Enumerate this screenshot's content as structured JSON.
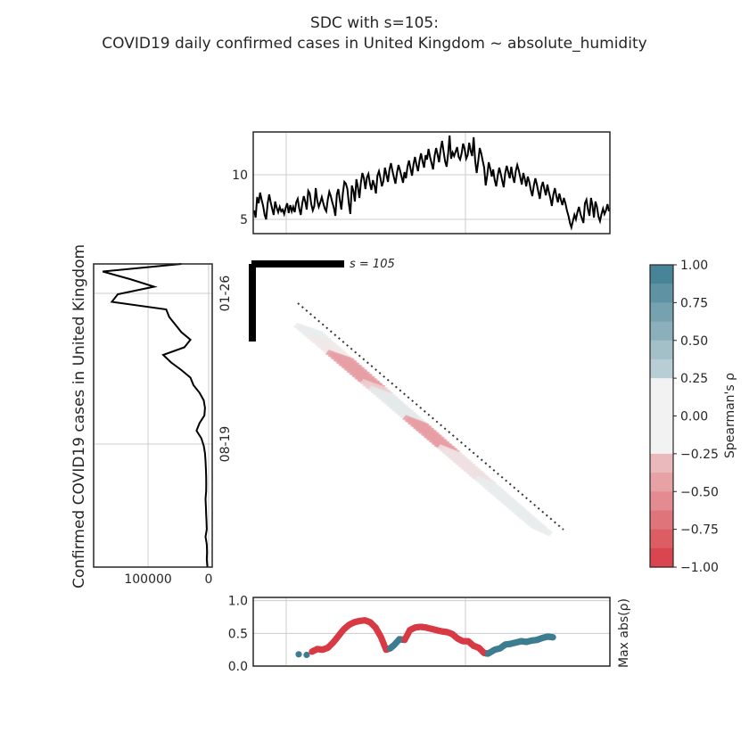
{
  "title": {
    "line1": "SDC with s=105:",
    "line2": "COVID19 daily confirmed cases in United Kingdom ~ absolute_humidity"
  },
  "colors": {
    "black": "#000000",
    "grid": "#cccccc",
    "negative": "#d83a45",
    "positive": "#3d7d91",
    "neutral": "#f2f2f2"
  },
  "chart_data": [
    {
      "id": "top",
      "type": "line",
      "ylabel": "",
      "yticks": [
        5,
        10
      ],
      "ylim": [
        3.4,
        14.8
      ],
      "grid": true,
      "series": [
        {
          "values": [
            6.0,
            5.2,
            7.5,
            6.8,
            8.0,
            7.2,
            6.5,
            5.5,
            5.0,
            6.8,
            7.8,
            6.9,
            6.2,
            5.5,
            7.0,
            6.3,
            5.8,
            6.4,
            5.9,
            6.1,
            5.6,
            6.3,
            6.8,
            5.7,
            6.6,
            5.9,
            6.4,
            5.8,
            6.9,
            7.3,
            6.2,
            5.5,
            6.8,
            7.6,
            7.0,
            6.1,
            8.2,
            7.9,
            6.7,
            6.0,
            6.5,
            8.5,
            7.1,
            6.4,
            6.9,
            7.5,
            6.8,
            6.2,
            5.9,
            7.2,
            8.1,
            7.6,
            6.9,
            6.3,
            5.4,
            7.8,
            8.4,
            7.2,
            6.1,
            7.9,
            9.2,
            9.0,
            8.4,
            6.8,
            5.6,
            8.8,
            8.2,
            7.0,
            9.5,
            8.6,
            7.4,
            9.1,
            10.2,
            9.6,
            8.4,
            9.7,
            10.1,
            9.0,
            8.3,
            9.4,
            8.8,
            7.9,
            9.9,
            10.4,
            9.6,
            8.7,
            9.3,
            10.8,
            10.0,
            9.2,
            10.6,
            11.3,
            10.4,
            9.7,
            9.0,
            10.2,
            11.1,
            10.5,
            9.8,
            9.1,
            10.3,
            9.6,
            10.9,
            11.6,
            10.7,
            9.9,
            11.2,
            12.0,
            11.1,
            10.4,
            11.6,
            12.4,
            11.5,
            10.8,
            12.2,
            11.7,
            12.9,
            12.0,
            11.3,
            10.6,
            12.1,
            13.0,
            12.3,
            11.4,
            12.8,
            13.8,
            12.6,
            11.5,
            10.9,
            12.4,
            14.4,
            11.8,
            12.5,
            12.1,
            12.6,
            13.1,
            12.0,
            11.7,
            12.4,
            13.5,
            12.9,
            11.8,
            12.2,
            13.6,
            12.7,
            12.1,
            14.2,
            11.6,
            10.2,
            11.5,
            13.0,
            12.4,
            11.6,
            10.8,
            8.8,
            9.9,
            11.4,
            10.7,
            9.8,
            10.6,
            9.4,
            8.7,
            9.9,
            10.8,
            10.1,
            9.3,
            8.6,
            10.2,
            11.0,
            10.3,
            9.6,
            10.9,
            9.8,
            9.1,
            10.4,
            11.1,
            10.5,
            9.7,
            8.9,
            10.2,
            9.5,
            8.7,
            9.8,
            9.2,
            8.3,
            7.6,
            8.8,
            9.6,
            8.9,
            8.1,
            7.3,
            8.6,
            9.2,
            8.4,
            7.7,
            8.9,
            8.1,
            7.4,
            6.5,
            7.8,
            8.5,
            7.6,
            6.9,
            7.9,
            7.2,
            6.6,
            7.4,
            6.8,
            6.0,
            5.4,
            4.6,
            4.1,
            4.8,
            5.5,
            5.0,
            5.8,
            6.4,
            5.6,
            5.1,
            4.6,
            6.8,
            7.2,
            6.1,
            5.4,
            7.4,
            6.6,
            5.2,
            7.0,
            6.4,
            5.3,
            4.8,
            5.6,
            6.2,
            5.6,
            6.0,
            6.7,
            5.9
          ]
        }
      ]
    },
    {
      "id": "left",
      "type": "line",
      "ylabel": "Confirmed COVID19 cases in United Kingdom",
      "xticks": [
        "100000",
        "0"
      ],
      "xlim": [
        190000,
        -6000
      ],
      "ytick_labels": [
        "01-26",
        "08-19"
      ],
      "grid": true,
      "series": [
        {
          "values": [
            45000,
            175000,
            130000,
            90000,
            150000,
            160000,
            70000,
            65000,
            55000,
            45000,
            30000,
            40000,
            75000,
            62000,
            45000,
            30000,
            25000,
            15000,
            8000,
            6000,
            7000,
            15000,
            20000,
            12000,
            8000,
            6000,
            5000,
            4500,
            4000,
            3800,
            4000,
            5000,
            4500,
            4000,
            3500,
            3000,
            5000,
            3000,
            2500,
            3000,
            2000
          ]
        }
      ]
    },
    {
      "id": "bottom",
      "type": "scatter",
      "ylabel": "Max abs(ρ)",
      "yticks": [
        "0.0",
        "0.5",
        "1.0"
      ],
      "ylim": [
        0,
        1.05
      ],
      "grid": true,
      "series": [
        {
          "color": "red-blue",
          "values": [
            {
              "x": 0.0,
              "y": 0.18,
              "s": "pos"
            },
            {
              "x": 0.03,
              "y": 0.17,
              "s": "pos"
            },
            {
              "x": 0.05,
              "y": 0.22,
              "s": "neg"
            },
            {
              "x": 0.07,
              "y": 0.26,
              "s": "neg"
            },
            {
              "x": 0.09,
              "y": 0.25,
              "s": "neg"
            },
            {
              "x": 0.11,
              "y": 0.28,
              "s": "neg"
            },
            {
              "x": 0.13,
              "y": 0.36,
              "s": "neg"
            },
            {
              "x": 0.15,
              "y": 0.46,
              "s": "neg"
            },
            {
              "x": 0.17,
              "y": 0.56,
              "s": "neg"
            },
            {
              "x": 0.19,
              "y": 0.63,
              "s": "neg"
            },
            {
              "x": 0.21,
              "y": 0.67,
              "s": "neg"
            },
            {
              "x": 0.23,
              "y": 0.69,
              "s": "neg"
            },
            {
              "x": 0.25,
              "y": 0.7,
              "s": "neg"
            },
            {
              "x": 0.27,
              "y": 0.67,
              "s": "neg"
            },
            {
              "x": 0.29,
              "y": 0.59,
              "s": "neg"
            },
            {
              "x": 0.31,
              "y": 0.45,
              "s": "neg"
            },
            {
              "x": 0.33,
              "y": 0.25,
              "s": "neg"
            },
            {
              "x": 0.345,
              "y": 0.27,
              "s": "pos"
            },
            {
              "x": 0.36,
              "y": 0.32,
              "s": "pos"
            },
            {
              "x": 0.38,
              "y": 0.41,
              "s": "pos"
            },
            {
              "x": 0.4,
              "y": 0.4,
              "s": "neg"
            },
            {
              "x": 0.42,
              "y": 0.55,
              "s": "neg"
            },
            {
              "x": 0.44,
              "y": 0.59,
              "s": "neg"
            },
            {
              "x": 0.46,
              "y": 0.6,
              "s": "neg"
            },
            {
              "x": 0.48,
              "y": 0.59,
              "s": "neg"
            },
            {
              "x": 0.5,
              "y": 0.57,
              "s": "neg"
            },
            {
              "x": 0.52,
              "y": 0.55,
              "s": "neg"
            },
            {
              "x": 0.54,
              "y": 0.53,
              "s": "neg"
            },
            {
              "x": 0.56,
              "y": 0.52,
              "s": "neg"
            },
            {
              "x": 0.58,
              "y": 0.49,
              "s": "neg"
            },
            {
              "x": 0.6,
              "y": 0.42,
              "s": "neg"
            },
            {
              "x": 0.62,
              "y": 0.38,
              "s": "neg"
            },
            {
              "x": 0.64,
              "y": 0.38,
              "s": "neg"
            },
            {
              "x": 0.66,
              "y": 0.31,
              "s": "neg"
            },
            {
              "x": 0.68,
              "y": 0.28,
              "s": "neg"
            },
            {
              "x": 0.7,
              "y": 0.2,
              "s": "neg"
            },
            {
              "x": 0.715,
              "y": 0.19,
              "s": "pos"
            },
            {
              "x": 0.74,
              "y": 0.25,
              "s": "pos"
            },
            {
              "x": 0.76,
              "y": 0.27,
              "s": "pos"
            },
            {
              "x": 0.78,
              "y": 0.33,
              "s": "pos"
            },
            {
              "x": 0.8,
              "y": 0.34,
              "s": "pos"
            },
            {
              "x": 0.82,
              "y": 0.36,
              "s": "pos"
            },
            {
              "x": 0.84,
              "y": 0.38,
              "s": "pos"
            },
            {
              "x": 0.86,
              "y": 0.37,
              "s": "pos"
            },
            {
              "x": 0.88,
              "y": 0.39,
              "s": "pos"
            },
            {
              "x": 0.9,
              "y": 0.4,
              "s": "pos"
            },
            {
              "x": 0.92,
              "y": 0.43,
              "s": "pos"
            },
            {
              "x": 0.94,
              "y": 0.45,
              "s": "pos"
            },
            {
              "x": 0.96,
              "y": 0.44,
              "s": "pos"
            }
          ]
        }
      ]
    },
    {
      "id": "heatmap",
      "type": "heatmap",
      "annotation": "s = 105",
      "segments": [
        {
          "from": 0.05,
          "to": 0.13,
          "value": -0.05
        },
        {
          "from": 0.13,
          "to": 0.27,
          "value": -0.45
        },
        {
          "from": 0.27,
          "to": 0.31,
          "value": -0.2
        },
        {
          "from": 0.31,
          "to": 0.45,
          "value": 0.08
        },
        {
          "from": 0.45,
          "to": 0.6,
          "value": -0.45
        },
        {
          "from": 0.6,
          "to": 0.75,
          "value": -0.1
        },
        {
          "from": 0.75,
          "to": 1.0,
          "value": 0.05
        }
      ]
    },
    {
      "id": "colorbar",
      "type": "heatmap",
      "ylabel": "Spearman's ρ",
      "range": [
        -1,
        1
      ],
      "ticks": [
        "1.00",
        "0.75",
        "0.50",
        "0.25",
        "0.00",
        "−0.25",
        "−0.50",
        "−0.75",
        "−1.00"
      ]
    }
  ]
}
